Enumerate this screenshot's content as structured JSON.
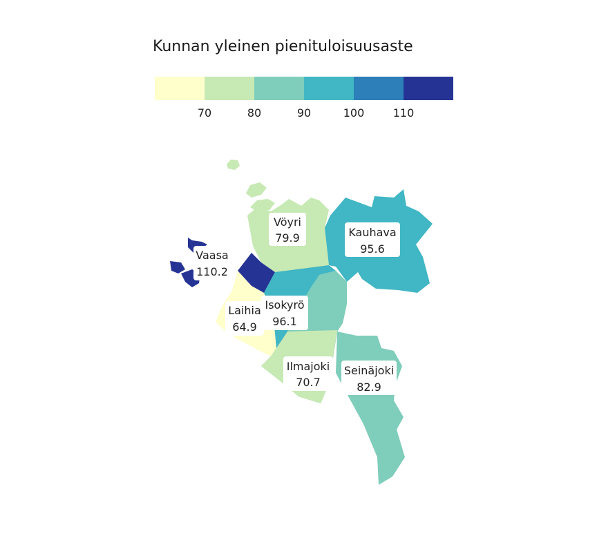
{
  "title": "Kunnan yleinen pienituloisuusaste",
  "legend": {
    "colors": [
      "#ffffcc",
      "#c7e9b4",
      "#7fcdbb",
      "#41b6c4",
      "#2c7fb8",
      "#253494"
    ],
    "ticks": [
      "70",
      "80",
      "90",
      "100",
      "110"
    ]
  },
  "municipalities": [
    {
      "name": "Vöyri",
      "value": "79.9",
      "color": "#c7e9b4"
    },
    {
      "name": "Kauhava",
      "value": "95.6",
      "color": "#41b6c4"
    },
    {
      "name": "Vaasa",
      "value": "110.2",
      "color": "#253494"
    },
    {
      "name": "Laihia",
      "value": "64.9",
      "color": "#ffffcc"
    },
    {
      "name": "Isokyrö",
      "value": "96.1",
      "color": "#41b6c4"
    },
    {
      "name": "Ilmajoki",
      "value": "70.7",
      "color": "#c7e9b4"
    },
    {
      "name": "Seinäjoki",
      "value": "82.9",
      "color": "#7fcdbb"
    }
  ]
}
